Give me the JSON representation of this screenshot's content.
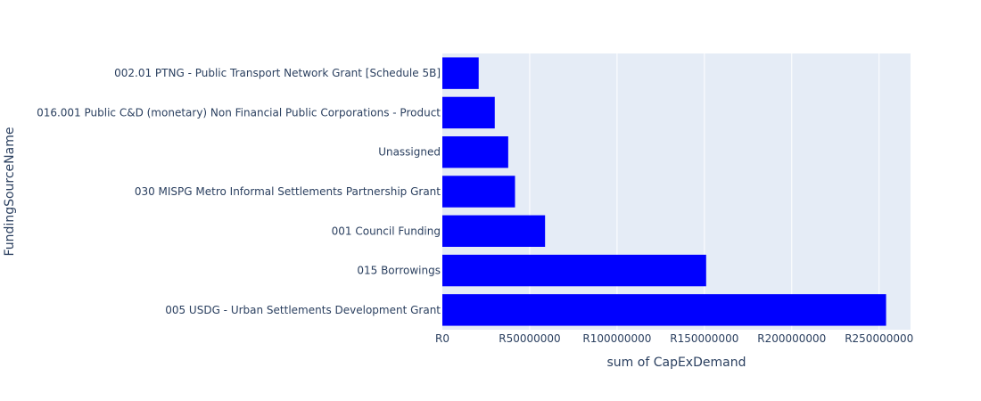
{
  "chart_data": {
    "type": "bar",
    "orientation": "horizontal",
    "categories": [
      "005 USDG - Urban Settlements Development Grant",
      "015 Borrowings",
      "001 Council Funding",
      "030 MISPG Metro Informal Settlements Partnership Grant",
      "Unassigned",
      "016.001 Public C&D (monetary) Non Financial Public Corporations - Product",
      "002.01 PTNG - Public Transport Network Grant [Schedule 5B]"
    ],
    "values": [
      254000000,
      151000000,
      58800000,
      41600000,
      37700000,
      30000000,
      20800000
    ],
    "xlabel": "sum of CapExDemand",
    "ylabel": "FundingSourceName",
    "xlim": [
      0,
      268000000
    ],
    "xticks": [
      0,
      50000000,
      100000000,
      150000000,
      200000000,
      250000000
    ],
    "xtick_labels": [
      "R0",
      "R50000000",
      "R100000000",
      "R150000000",
      "R200000000",
      "R250000000"
    ],
    "grid": true,
    "bar_color": "#0000ff",
    "plot_background": "#e5ecf6",
    "grid_color": "#ffffff",
    "text_color": "#2a3f5f"
  }
}
